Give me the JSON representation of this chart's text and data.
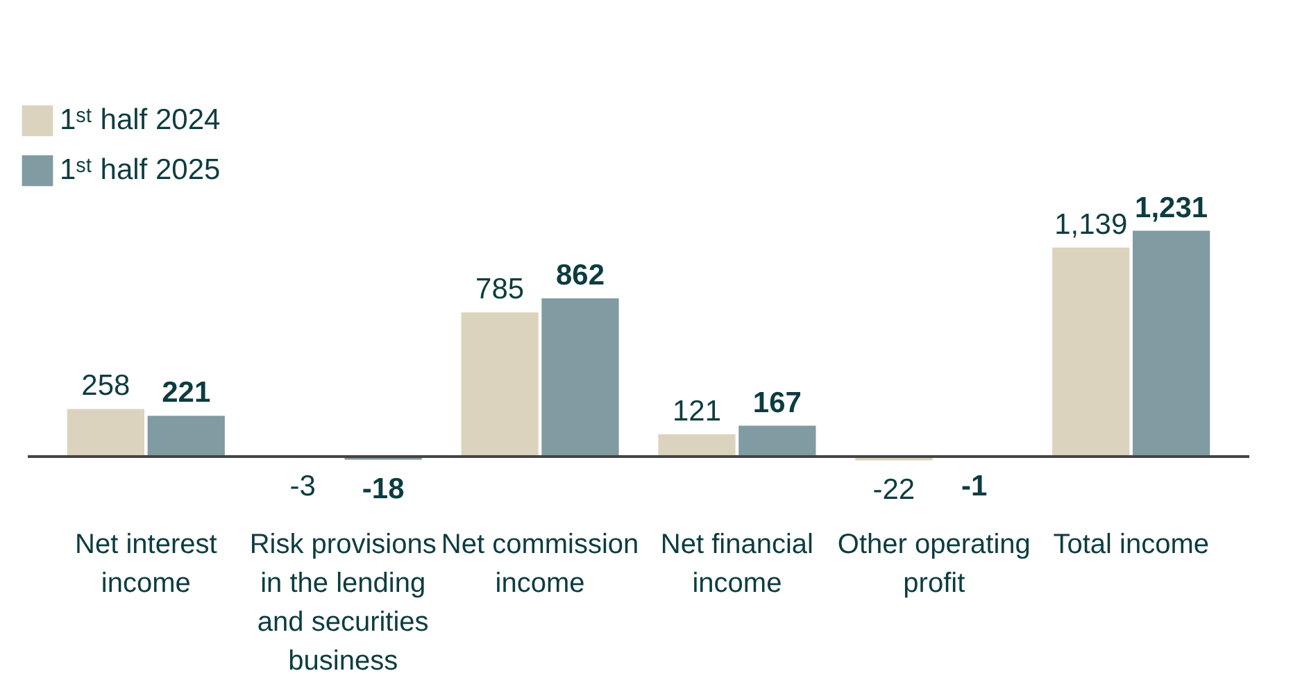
{
  "chart_data": {
    "type": "bar",
    "categories": [
      "Net interest income",
      "Risk provisions in the lending and securities business",
      "Net commission income",
      "Net financial income",
      "Other operating profit",
      "Total income"
    ],
    "series": [
      {
        "name": "1ˢᵗ half 2024",
        "color": "#dbd3bd",
        "values": [
          258,
          -3,
          785,
          121,
          -22,
          1139
        ],
        "value_labels": [
          "258",
          "-3",
          "785",
          "121",
          "-22",
          "1,139"
        ]
      },
      {
        "name": "1ˢᵗ half 2025",
        "color": "#809ba1",
        "values": [
          221,
          -18,
          862,
          167,
          -1,
          1231
        ],
        "value_labels": [
          "221",
          "-18",
          "862",
          "167",
          "-1",
          "1,231"
        ]
      }
    ],
    "legend": "top left",
    "grid": false
  }
}
